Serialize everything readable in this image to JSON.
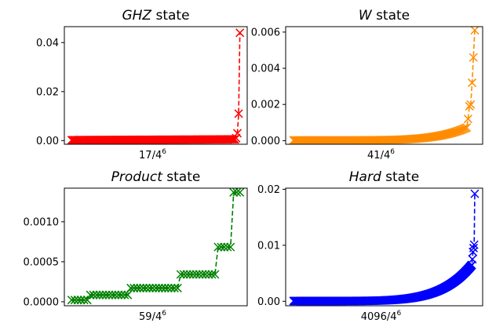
{
  "chart_data": [
    {
      "type": "scatter",
      "title_italic": "GHZ",
      "title_rest": " state",
      "xlabel_base": "17/4",
      "xlabel_exp": "6",
      "color": "#ff0000",
      "ylim": [
        -0.0015,
        0.0465
      ],
      "yticks": [
        0.0,
        0.02,
        0.04
      ],
      "ytick_labels": [
        "0.00",
        "0.02",
        "0.04"
      ],
      "n_base": 130,
      "tail": [
        0.0005,
        0.001,
        0.003,
        0.011,
        0.044
      ]
    },
    {
      "type": "scatter",
      "title_italic": "W",
      "title_rest": " state",
      "xlabel_base": "41/4",
      "xlabel_exp": "6",
      "color": "#ff8c00",
      "ylim": [
        -0.0002,
        0.0063
      ],
      "yticks": [
        0.0,
        0.002,
        0.004,
        0.006
      ],
      "ytick_labels": [
        "0.000",
        "0.002",
        "0.004",
        "0.006"
      ],
      "curve": "exp",
      "n_points": 130,
      "tail": [
        0.00075,
        0.0012,
        0.0019,
        0.002,
        0.0032,
        0.0046,
        0.0061
      ]
    },
    {
      "type": "scatter",
      "title_italic": "Product",
      "title_rest": " state",
      "xlabel_base": "59/4",
      "xlabel_exp": "6",
      "color": "#008000",
      "ylim": [
        -5e-05,
        0.00142
      ],
      "yticks": [
        0.0,
        0.0005,
        0.001
      ],
      "ytick_labels": [
        "0.0000",
        "0.0005",
        "0.0010"
      ],
      "steps": [
        {
          "value": 2.14e-05,
          "count": 6
        },
        {
          "value": 8.54e-05,
          "count": 13
        },
        {
          "value": 0.0001709,
          "count": 16
        },
        {
          "value": 0.0003418,
          "count": 12
        },
        {
          "value": 0.0006836,
          "count": 5
        },
        {
          "value": 0.0013672,
          "count": 3
        }
      ]
    },
    {
      "type": "scatter",
      "title_italic": "Hard",
      "title_rest": " state",
      "xlabel_base": "4096/4",
      "xlabel_exp": "6",
      "color": "#0000ff",
      "ylim": [
        -0.0008,
        0.0202
      ],
      "yticks": [
        0.0,
        0.01,
        0.02
      ],
      "ytick_labels": [
        "0.00",
        "0.01",
        "0.02"
      ],
      "curve": "exp",
      "n_points": 300,
      "tail": [
        0.0065,
        0.0075,
        0.0088,
        0.0095,
        0.0101,
        0.0192
      ]
    }
  ]
}
